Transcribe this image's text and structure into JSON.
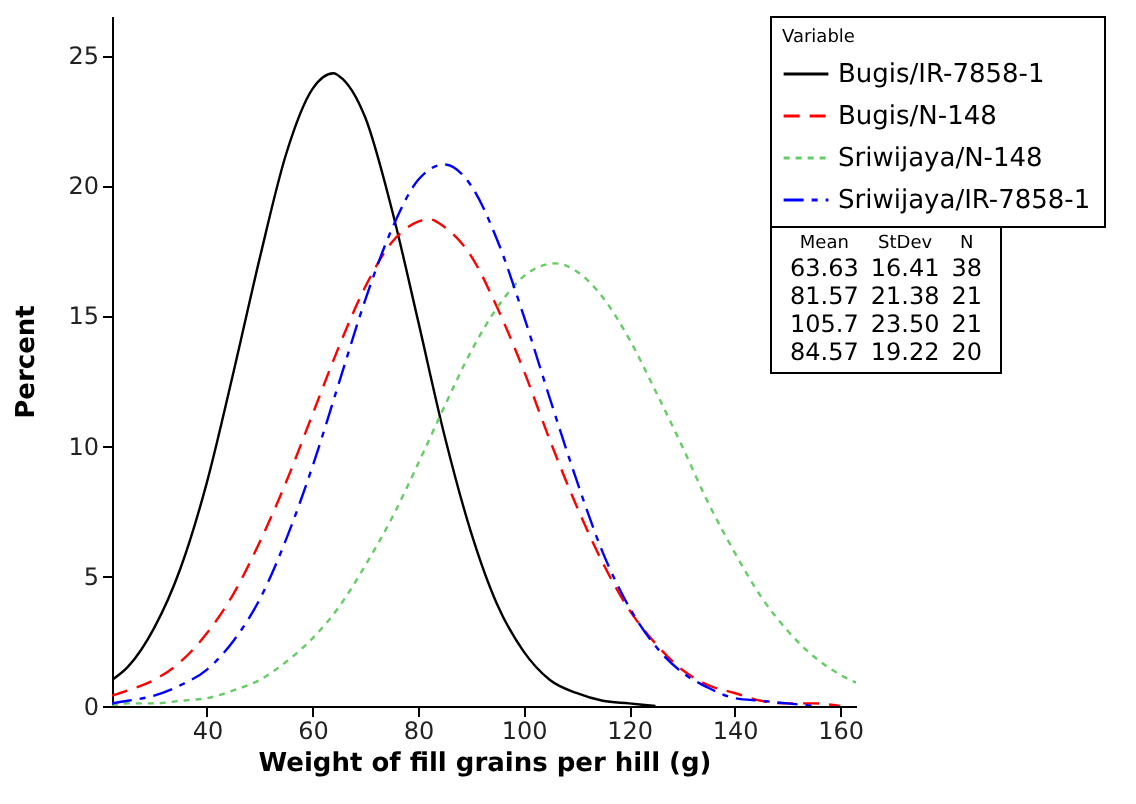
{
  "chart_data": {
    "type": "line",
    "xlabel": "Weight of fill grains per hill (g)",
    "ylabel": "Percent",
    "legend_title": "Variable",
    "legend": "top right",
    "grid": false,
    "xlim": [
      22,
      163
    ],
    "xticks": [
      40,
      60,
      80,
      100,
      120,
      140,
      160
    ],
    "ylim": [
      0,
      26.5
    ],
    "yticks": [
      0,
      5,
      10,
      15,
      20,
      25
    ],
    "annotations": [
      "Mean StDev N",
      "63.63 16.41 38",
      "81.57 21.38 21",
      "105.7 23.50 21",
      "84.57 19.22 20"
    ],
    "series": [
      {
        "name": "Bugis/IR-7858-1",
        "color": "#000000",
        "line_style": "solid",
        "x": [
          22,
          25,
          30,
          35,
          40,
          45,
          50,
          55,
          60,
          64,
          65,
          70,
          75,
          80,
          85,
          90,
          95,
          100,
          105,
          110,
          115,
          120,
          125
        ],
        "values": [
          1.0,
          1.5,
          3.0,
          5.3,
          8.6,
          12.8,
          17.2,
          21.2,
          23.7,
          24.3,
          24.2,
          22.6,
          19.1,
          14.8,
          10.4,
          6.7,
          3.9,
          2.1,
          1.0,
          0.5,
          0.2,
          0.1,
          0.0
        ]
      },
      {
        "name": "Bugis/N-148",
        "color": "#ff0000",
        "line_style": "dashed",
        "x": [
          22,
          25,
          30,
          35,
          40,
          45,
          50,
          55,
          60,
          65,
          70,
          75,
          80,
          82,
          85,
          90,
          95,
          100,
          105,
          110,
          115,
          120,
          125,
          130,
          135,
          140,
          145,
          150,
          155,
          160
        ],
        "values": [
          0.4,
          0.6,
          1.0,
          1.7,
          2.8,
          4.3,
          6.3,
          8.6,
          11.2,
          13.8,
          16.1,
          17.8,
          18.6,
          18.7,
          18.4,
          17.3,
          15.3,
          12.9,
          10.2,
          7.7,
          5.5,
          3.7,
          2.4,
          1.4,
          0.8,
          0.5,
          0.2,
          0.1,
          0.1,
          0.0
        ]
      },
      {
        "name": "Sriwijaya/N-148",
        "color": "#66cc66",
        "line_style": "dotted",
        "x": [
          22,
          25,
          30,
          35,
          40,
          45,
          50,
          55,
          60,
          65,
          70,
          75,
          80,
          85,
          90,
          95,
          100,
          106,
          110,
          115,
          120,
          125,
          130,
          135,
          140,
          145,
          150,
          155,
          160,
          163
        ],
        "values": [
          0.0,
          0.1,
          0.1,
          0.2,
          0.3,
          0.6,
          1.0,
          1.7,
          2.6,
          3.8,
          5.4,
          7.2,
          9.3,
          11.5,
          13.6,
          15.3,
          16.5,
          17.0,
          16.7,
          15.7,
          14.1,
          12.1,
          10.0,
          7.8,
          5.9,
          4.2,
          2.9,
          1.9,
          1.2,
          0.9
        ]
      },
      {
        "name": "Sriwijaya/IR-7858-1",
        "color": "#0000ff",
        "line_style": "dashed",
        "x": [
          22,
          25,
          30,
          35,
          40,
          45,
          50,
          55,
          60,
          65,
          70,
          75,
          80,
          85,
          90,
          95,
          100,
          105,
          110,
          115,
          120,
          125,
          130,
          135,
          140,
          145,
          150,
          155
        ],
        "values": [
          0.1,
          0.2,
          0.4,
          0.8,
          1.4,
          2.5,
          4.1,
          6.4,
          9.2,
          12.4,
          15.6,
          18.3,
          20.2,
          20.8,
          20.0,
          17.9,
          15.0,
          11.8,
          8.7,
          5.9,
          3.8,
          2.3,
          1.3,
          0.7,
          0.3,
          0.2,
          0.1,
          0.0
        ]
      }
    ]
  }
}
